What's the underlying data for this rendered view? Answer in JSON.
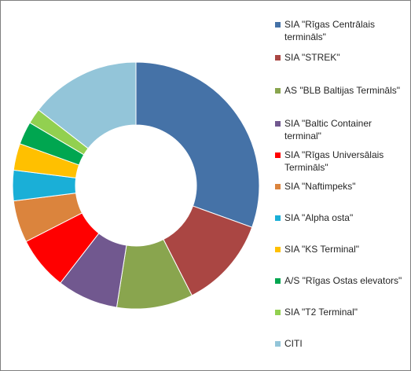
{
  "chart_data": {
    "type": "pie",
    "donut": true,
    "legend_position": "right",
    "categories": [
      "SIA \"Rīgas Centrālais termināls\"",
      "SIA \"STREK\"",
      "AS \"BLB Baltijas Termināls\"",
      "SIA \"Baltic Container terminal\"",
      "SIA \"Rīgas Universālais Termināls\"",
      "SIA \"Naftimpeks\"",
      "SIA \"Alpha osta\"",
      "SIA \"KS Terminal\"",
      "A/S \"Rīgas Ostas elevators\"",
      "SIA \"T2 Terminal\"",
      "CITI"
    ],
    "values": [
      30.5,
      12.0,
      10.0,
      8.0,
      7.0,
      5.5,
      4.0,
      3.5,
      3.0,
      2.0,
      14.5
    ],
    "colors": [
      "#4572A7",
      "#AA4643",
      "#89A54E",
      "#71588F",
      "#FF0000",
      "#DB843D",
      "#1AAFD7",
      "#FFC000",
      "#00A650",
      "#92D050",
      "#93C5D9"
    ]
  }
}
